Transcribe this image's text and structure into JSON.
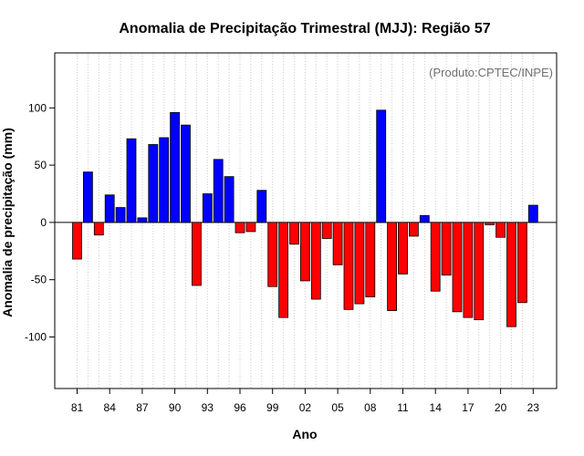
{
  "chart_data": {
    "type": "bar",
    "title": "Anomalia de Precipitação Trimestral (MJJ): Região 57",
    "xlabel": "Ano",
    "ylabel": "Anomalia de precipitação (mm)",
    "annotation": "(Produto:CPTEC/INPE)",
    "ylim": [
      -145,
      148
    ],
    "y_ticks": [
      -100,
      -50,
      0,
      50,
      100
    ],
    "x_tick_labels": [
      "81",
      "84",
      "87",
      "90",
      "93",
      "96",
      "99",
      "02",
      "05",
      "08",
      "11",
      "14",
      "17",
      "20",
      "23"
    ],
    "x_tick_years": [
      1981,
      1984,
      1987,
      1990,
      1993,
      1996,
      1999,
      2002,
      2005,
      2008,
      2011,
      2014,
      2017,
      2020,
      2023
    ],
    "grid": true,
    "positive_color": "#0000ff",
    "negative_color": "#ff0000",
    "categories": [
      1981,
      1982,
      1983,
      1984,
      1985,
      1986,
      1987,
      1988,
      1989,
      1990,
      1991,
      1992,
      1993,
      1994,
      1995,
      1996,
      1997,
      1998,
      1999,
      2000,
      2001,
      2002,
      2003,
      2004,
      2005,
      2006,
      2007,
      2008,
      2009,
      2010,
      2011,
      2012,
      2013,
      2014,
      2015,
      2016,
      2017,
      2018,
      2019,
      2020,
      2021,
      2022,
      2023
    ],
    "values": [
      -32,
      44,
      -11,
      24,
      13,
      73,
      4,
      68,
      74,
      96,
      85,
      -55,
      25,
      55,
      40,
      -9,
      -8,
      28,
      -56,
      -83,
      -19,
      -51,
      -67,
      -14,
      -37,
      -76,
      -71,
      -65,
      98,
      -77,
      -45,
      -12,
      6,
      -60,
      -46,
      -78,
      -83,
      -85,
      -2,
      -13,
      -91,
      -70,
      15
    ]
  }
}
